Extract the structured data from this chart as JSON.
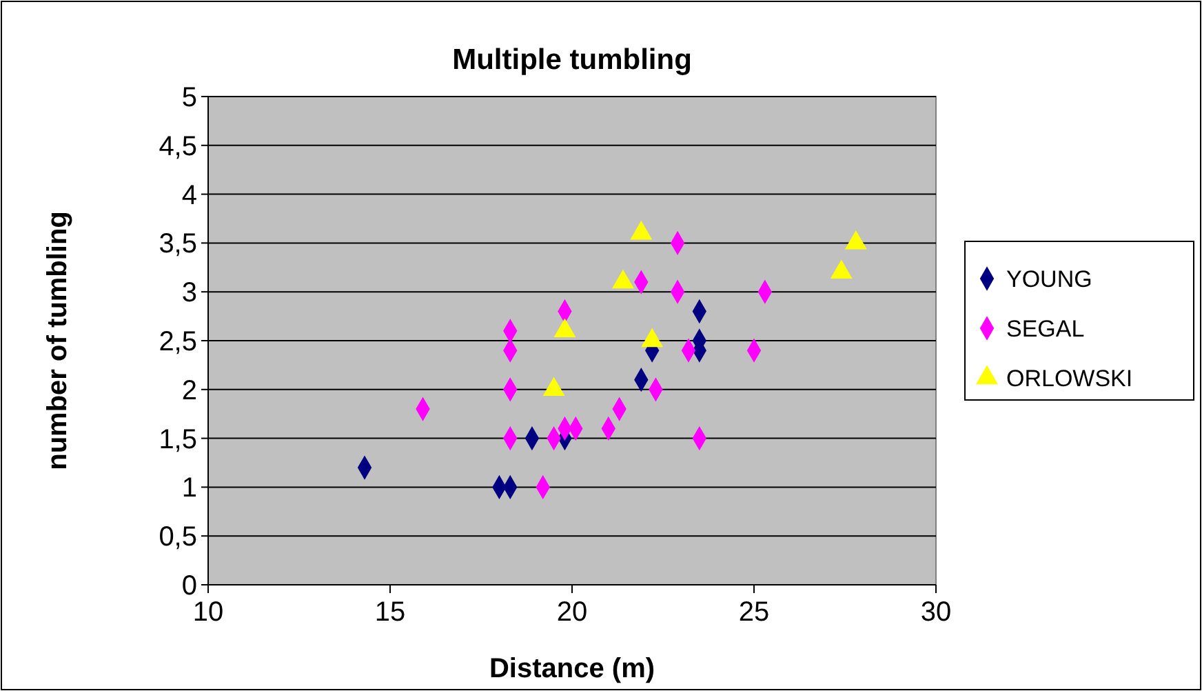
{
  "chart_data": {
    "type": "scatter",
    "title": "Multiple tumbling",
    "xlabel": "Distance (m)",
    "ylabel": "number of tumbling",
    "xlim": [
      10,
      30
    ],
    "xticks": [
      10,
      15,
      20,
      25,
      30
    ],
    "ylim": [
      0,
      5
    ],
    "yticks": [
      0,
      {
        "value": 0.5,
        "label": "0,5"
      },
      1,
      {
        "value": 1.5,
        "label": "1,5"
      },
      2,
      {
        "value": 2.5,
        "label": "2,5"
      },
      3,
      {
        "value": 3.5,
        "label": "3,5"
      },
      4,
      {
        "value": 4.5,
        "label": "4,5"
      },
      5
    ],
    "grid": "y",
    "legend": "right",
    "series": [
      {
        "name": "YOUNG",
        "color": "#000080",
        "marker": "diamond",
        "x": [
          14.3,
          18,
          18.3,
          18.9,
          19.8,
          21.9,
          22.2,
          23.5,
          23.5,
          23.5
        ],
        "values": [
          1.2,
          1,
          1,
          1.5,
          1.5,
          2.1,
          2.4,
          2.8,
          2.5,
          2.4
        ]
      },
      {
        "name": "SEGAL",
        "color": "#ff00ff",
        "marker": "diamond",
        "x": [
          15.9,
          18.3,
          18.3,
          18.3,
          18.3,
          19.2,
          19.5,
          19.8,
          20.1,
          19.8,
          21,
          21.3,
          21.9,
          22.3,
          22.9,
          22.9,
          23.2,
          23.5,
          25,
          25.3
        ],
        "values": [
          1.8,
          2.6,
          2.4,
          2,
          1.5,
          1,
          1.5,
          1.6,
          1.6,
          2.8,
          1.6,
          1.8,
          3.1,
          2,
          3.5,
          3,
          2.4,
          1.5,
          2.4,
          3
        ]
      },
      {
        "name": "ORLOWSKI",
        "color": "#ffff00",
        "marker": "triangle",
        "x": [
          19.5,
          19.8,
          21.4,
          21.9,
          22.2,
          27.4,
          27.8
        ],
        "values": [
          2,
          2.6,
          3.1,
          3.6,
          2.5,
          3.2,
          3.5
        ]
      }
    ]
  }
}
